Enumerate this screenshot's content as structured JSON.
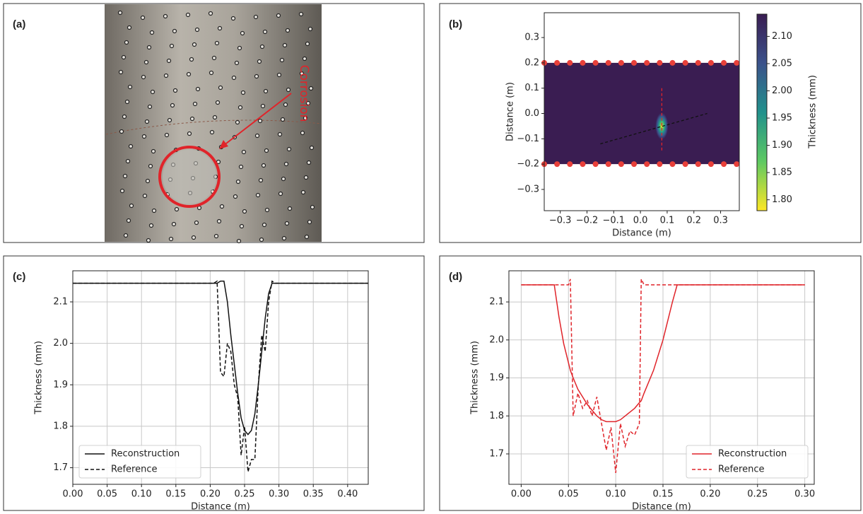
{
  "chart_data": [
    {
      "type": "image",
      "panel_label": "(a)",
      "annotation": "Corrosion",
      "color": "#e0242a"
    },
    {
      "type": "heatmap",
      "panel_label": "(b)",
      "xlabel": "Distance (m)",
      "ylabel": "Distance (m)",
      "xlim": [
        -0.36,
        0.37
      ],
      "ylim": [
        -0.384,
        0.398
      ],
      "xticks": [
        {
          "value": -0.3,
          "label": "−0.3"
        },
        {
          "value": -0.2,
          "label": "−0.2"
        },
        {
          "value": -0.1,
          "label": "−0.1"
        },
        {
          "value": 0,
          "label": "0.0"
        },
        0.1,
        0.2,
        0.3
      ],
      "yticks": [
        0.3,
        0.2,
        0.1,
        {
          "value": 0,
          "label": "0.0"
        },
        {
          "value": -0.1,
          "label": "−0.1"
        },
        {
          "value": -0.2,
          "label": "−0.2"
        },
        {
          "value": -0.3,
          "label": "−0.3"
        }
      ],
      "band_y": [
        -0.2,
        0.2
      ],
      "base_value": 2.145,
      "anomaly": {
        "x": 0.08,
        "y": -0.05,
        "min": 1.78
      },
      "colormap": [
        "#fde725",
        "#5ec962",
        "#21918c",
        "#3b528b",
        "#3a1d52"
      ],
      "colorbar_label": "Thickness (mm)",
      "clim": [
        1.78,
        2.146
      ],
      "cticks": [
        {
          "value": 1.8,
          "label": "1.80"
        },
        {
          "value": 1.85,
          "label": "1.85"
        },
        {
          "value": 1.9,
          "label": "1.90"
        },
        {
          "value": 1.95,
          "label": "1.95"
        },
        {
          "value": 2.0,
          "label": "2.00"
        },
        {
          "value": 2.05,
          "label": "2.05"
        },
        {
          "value": 2.1,
          "label": "2.10"
        }
      ],
      "sensors": {
        "x": [
          -0.36,
          -0.312,
          -0.264,
          -0.216,
          -0.168,
          -0.12,
          -0.072,
          -0.024,
          0.024,
          0.072,
          0.12,
          0.168,
          0.216,
          0.264,
          0.312,
          0.36
        ],
        "y": [
          0.2,
          -0.2
        ],
        "color": "#e8403a"
      },
      "lines": [
        {
          "x": [
            -0.15,
            0.25
          ],
          "y": [
            -0.12,
            0.0
          ],
          "color": "#111111"
        },
        {
          "x": [
            0.08,
            0.08
          ],
          "y": [
            0.1,
            -0.15
          ],
          "color": "#e0242a"
        }
      ]
    },
    {
      "type": "line",
      "panel_label": "(c)",
      "xlabel": "Distance (m)",
      "ylabel": "Thickness (mm)",
      "xlim": [
        0,
        0.43
      ],
      "ylim": [
        1.66,
        2.175
      ],
      "grid": true,
      "legend": "lower left",
      "xticks": [
        {
          "value": 0,
          "label": "0.00"
        },
        {
          "value": 0.05,
          "label": "0.05"
        },
        {
          "value": 0.1,
          "label": "0.10"
        },
        {
          "value": 0.15,
          "label": "0.15"
        },
        {
          "value": 0.2,
          "label": "0.20"
        },
        {
          "value": 0.25,
          "label": "0.25"
        },
        {
          "value": 0.3,
          "label": "0.30"
        },
        {
          "value": 0.35,
          "label": "0.35"
        },
        {
          "value": 0.4,
          "label": "0.40"
        }
      ],
      "yticks": [
        1.7,
        1.8,
        1.9,
        {
          "value": 2,
          "label": "2.0"
        },
        2.1
      ],
      "x": [
        0,
        0.205,
        0.21,
        0.215,
        0.22,
        0.225,
        0.23,
        0.235,
        0.24,
        0.245,
        0.25,
        0.255,
        0.26,
        0.265,
        0.27,
        0.275,
        0.28,
        0.285,
        0.29,
        0.295,
        0.3,
        0.43
      ],
      "series": [
        {
          "name": "Reconstruction",
          "color": "#111111",
          "linestyle": "solid",
          "values": [
            2.145,
            2.145,
            2.145,
            2.15,
            2.15,
            2.1,
            2.02,
            1.95,
            1.88,
            1.82,
            1.79,
            1.78,
            1.79,
            1.83,
            1.9,
            1.98,
            2.06,
            2.12,
            2.145,
            2.145,
            2.145,
            2.145
          ]
        },
        {
          "name": "Reference",
          "color": "#111111",
          "linestyle": "dashed",
          "values": [
            2.145,
            2.145,
            2.15,
            1.93,
            1.92,
            2.0,
            1.98,
            1.9,
            1.87,
            1.73,
            1.8,
            1.69,
            1.72,
            1.72,
            1.9,
            2.02,
            1.98,
            2.1,
            2.15,
            2.145,
            2.145,
            2.145
          ]
        }
      ]
    },
    {
      "type": "line",
      "panel_label": "(d)",
      "xlabel": "Distance (m)",
      "ylabel": "Thickness (mm)",
      "xlim": [
        -0.013,
        0.31
      ],
      "ylim": [
        1.62,
        2.182
      ],
      "grid": true,
      "legend": "lower right",
      "xticks": [
        {
          "value": 0,
          "label": "0.00"
        },
        {
          "value": 0.05,
          "label": "0.05"
        },
        {
          "value": 0.1,
          "label": "0.10"
        },
        {
          "value": 0.15,
          "label": "0.15"
        },
        {
          "value": 0.2,
          "label": "0.20"
        },
        {
          "value": 0.25,
          "label": "0.25"
        },
        {
          "value": 0.3,
          "label": "0.30"
        }
      ],
      "yticks": [
        1.7,
        1.8,
        1.9,
        {
          "value": 2,
          "label": "2.0"
        },
        2.1
      ],
      "x": [
        0,
        0.035,
        0.04,
        0.045,
        0.05,
        0.052,
        0.055,
        0.06,
        0.065,
        0.07,
        0.075,
        0.08,
        0.085,
        0.09,
        0.095,
        0.1,
        0.105,
        0.11,
        0.115,
        0.12,
        0.125,
        0.127,
        0.13,
        0.14,
        0.15,
        0.16,
        0.165,
        0.3
      ],
      "series": [
        {
          "name": "Reconstruction",
          "color": "#e0242a",
          "linestyle": "solid",
          "values": [
            2.145,
            2.145,
            2.06,
            1.99,
            1.94,
            1.92,
            1.9,
            1.87,
            1.85,
            1.83,
            1.815,
            1.8,
            1.79,
            1.785,
            1.785,
            1.785,
            1.79,
            1.8,
            1.81,
            1.82,
            1.835,
            1.84,
            1.86,
            1.92,
            2.0,
            2.1,
            2.145,
            2.145
          ]
        },
        {
          "name": "Reference",
          "color": "#e0242a",
          "linestyle": "dashed",
          "values": [
            2.145,
            2.145,
            2.145,
            2.145,
            2.145,
            2.16,
            1.8,
            1.86,
            1.82,
            1.84,
            1.8,
            1.85,
            1.78,
            1.71,
            1.77,
            1.65,
            1.78,
            1.72,
            1.76,
            1.75,
            1.78,
            2.16,
            2.145,
            2.145,
            2.145,
            2.145,
            2.145,
            2.145
          ]
        }
      ]
    }
  ]
}
